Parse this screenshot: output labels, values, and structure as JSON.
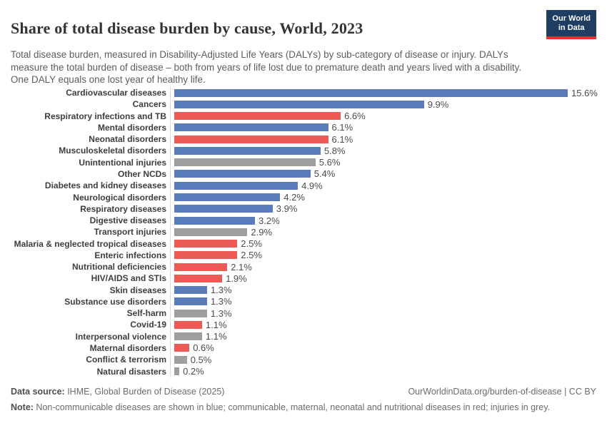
{
  "header": {
    "title": "Share of total disease burden by cause, World, 2023",
    "subtitle": "Total disease burden, measured in Disability-Adjusted Life Years (DALYs) by sub-category of disease or injury. DALYs measure the total burden of disease – both from years of life lost due to premature death and years lived with a disability. One DALY equals one lost year of healthy life.",
    "logo": {
      "line1": "Our World",
      "line2": "in Data"
    }
  },
  "chart_data": {
    "type": "bar",
    "orientation": "horizontal",
    "title": "Share of total disease burden by cause, World, 2023",
    "unit": "%",
    "xlim": [
      0,
      16
    ],
    "grid": false,
    "legend": "none (color meaning explained in footer note)",
    "categories": [
      "Cardiovascular diseases",
      "Cancers",
      "Respiratory infections and TB",
      "Mental disorders",
      "Neonatal disorders",
      "Musculoskeletal disorders",
      "Unintentional injuries",
      "Other NCDs",
      "Diabetes and kidney diseases",
      "Neurological disorders",
      "Respiratory diseases",
      "Digestive diseases",
      "Transport injuries",
      "Malaria & neglected tropical diseases",
      "Enteric infections",
      "Nutritional deficiencies",
      "HIV/AIDS and STIs",
      "Skin diseases",
      "Substance use disorders",
      "Self-harm",
      "Covid-19",
      "Interpersonal violence",
      "Maternal disorders",
      "Conflict & terrorism",
      "Natural disasters"
    ],
    "values": [
      15.6,
      9.9,
      6.6,
      6.1,
      6.1,
      5.8,
      5.6,
      5.4,
      4.9,
      4.2,
      3.9,
      3.2,
      2.9,
      2.5,
      2.5,
      2.1,
      1.9,
      1.3,
      1.3,
      1.3,
      1.1,
      1.1,
      0.6,
      0.5,
      0.2
    ],
    "groups": [
      "ncd",
      "ncd",
      "cmnn",
      "ncd",
      "cmnn",
      "ncd",
      "injury",
      "ncd",
      "ncd",
      "ncd",
      "ncd",
      "ncd",
      "injury",
      "cmnn",
      "cmnn",
      "cmnn",
      "cmnn",
      "ncd",
      "ncd",
      "injury",
      "cmnn",
      "injury",
      "cmnn",
      "injury",
      "injury"
    ],
    "colors": {
      "ncd": "#5b7cba",
      "cmnn": "#ec5a55",
      "injury": "#9e9e9e"
    }
  },
  "footer": {
    "datasource_label": "Data source:",
    "datasource_text": " IHME, Global Burden of Disease (2025)",
    "link": "OurWorldinData.org/burden-of-disease | CC BY",
    "note_label": "Note:",
    "note_text": " Non-communicable diseases are shown in blue; communicable, maternal, neonatal and nutritional diseases in red; injuries in grey."
  }
}
